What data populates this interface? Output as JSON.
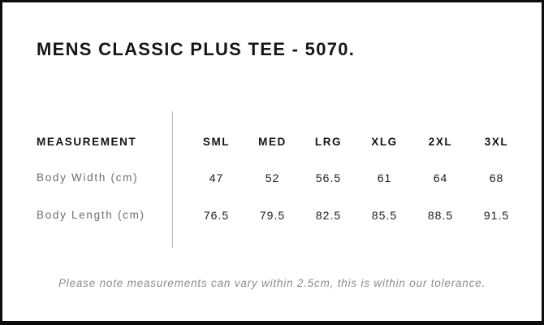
{
  "title": "MENS CLASSIC PLUS TEE - 5070.",
  "size_chart": {
    "measurement_header": "MEASUREMENT",
    "sizes": [
      "SML",
      "MED",
      "LRG",
      "XLG",
      "2XL",
      "3XL"
    ],
    "rows": [
      {
        "label": "Body Width (cm)",
        "values": [
          "47",
          "52",
          "56.5",
          "61",
          "64",
          "68"
        ]
      },
      {
        "label": "Body Length (cm)",
        "values": [
          "76.5",
          "79.5",
          "82.5",
          "85.5",
          "88.5",
          "91.5"
        ]
      }
    ]
  },
  "footnote": "Please note measurements can vary within 2.5cm, this is within our tolerance.",
  "colors": {
    "text": "#161616",
    "label_gray": "#6e6e6e",
    "note_gray": "#8c8c8c",
    "divider": "#b9b9b9",
    "border": "#0d0d0d"
  }
}
